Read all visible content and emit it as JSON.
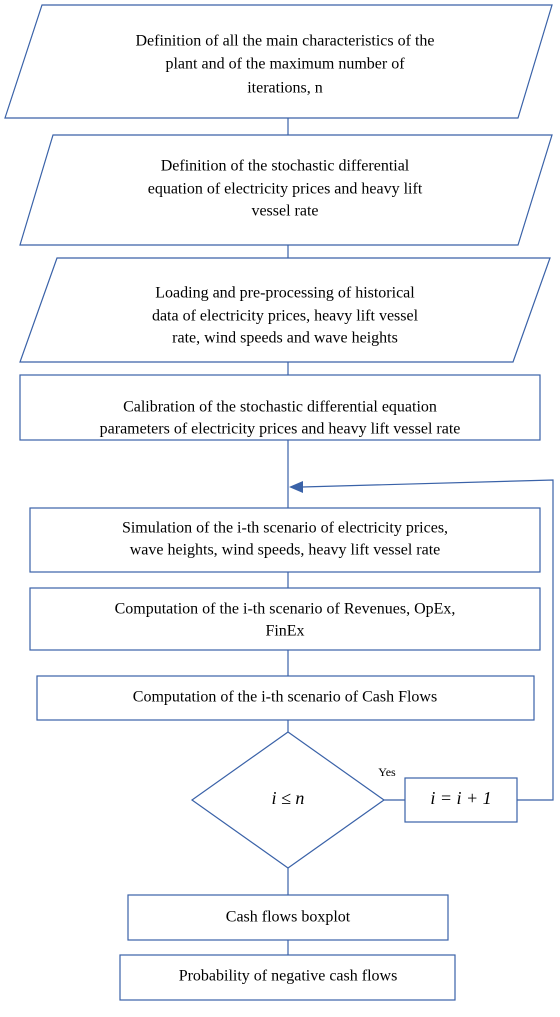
{
  "nodes": [
    {
      "lines": [
        "Definition of all the main characteristics of the",
        "plant and of the maximum number of",
        "iterations, n"
      ]
    },
    {
      "lines": [
        "Definition of the stochastic differential",
        "equation of electricity prices and heavy lift",
        "vessel rate"
      ]
    },
    {
      "lines": [
        "Loading and pre-processing of historical",
        "data of electricity prices, heavy lift vessel",
        "rate, wind speeds and wave heights"
      ]
    },
    {
      "lines": [
        "Calibration of the stochastic differential equation",
        "parameters of electricity prices and heavy lift vessel rate"
      ]
    },
    {
      "lines": [
        "Simulation of the i-th scenario of electricity prices,",
        "wave heights, wind speeds, heavy lift vessel rate"
      ]
    },
    {
      "lines": [
        "Computation of the i-th scenario of Revenues, OpEx,",
        "FinEx"
      ]
    },
    {
      "lines": [
        "Computation of the i-th scenario of  Cash Flows"
      ]
    },
    {
      "lines": [
        "i ≤ n"
      ]
    },
    {
      "lines": [
        "i  =  i + 1"
      ]
    },
    {
      "lines": [
        "Cash flows boxplot"
      ]
    },
    {
      "lines": [
        "Probability of negative cash flows"
      ]
    }
  ],
  "edges": [
    {
      "label": "Yes"
    }
  ]
}
